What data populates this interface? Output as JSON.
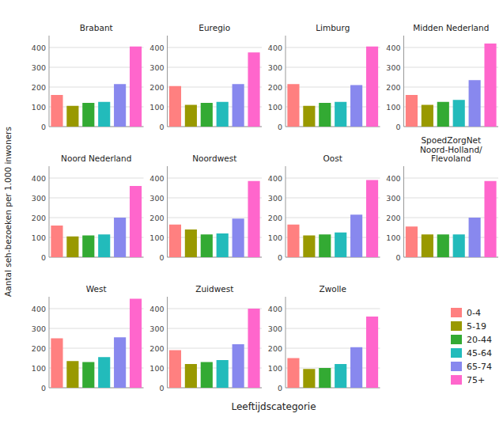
{
  "chart_data": [
    {
      "type": "bar",
      "title": "Brabant",
      "categories": [
        "0-4",
        "5-19",
        "20-44",
        "45-64",
        "65-74",
        "75+"
      ],
      "values": [
        160,
        105,
        120,
        125,
        215,
        405
      ],
      "colors": [
        "#FF8080",
        "#999900",
        "#33AA33",
        "#22BBBB",
        "#8888EE",
        "#FF66CC"
      ],
      "ylim": [
        0,
        460
      ],
      "yticks": [
        0,
        100,
        200,
        300,
        400
      ],
      "grid": true,
      "tick_labels": "y",
      "legend": "lower right",
      "xlabel": "Leeftijdscategorie",
      "ylabel": "Aantal seh-bezoeken per 1.000 inwoners"
    },
    {
      "type": "bar",
      "title": "Euregio",
      "categories": [
        "0-4",
        "5-19",
        "20-44",
        "45-64",
        "65-74",
        "75+"
      ],
      "values": [
        205,
        110,
        120,
        125,
        215,
        375
      ],
      "colors": [
        "#FF8080",
        "#999900",
        "#33AA33",
        "#22BBBB",
        "#8888EE",
        "#FF66CC"
      ],
      "ylim": [
        0,
        460
      ],
      "yticks": [
        0,
        100,
        200,
        300,
        400
      ],
      "grid": true,
      "tick_labels": "y"
    },
    {
      "type": "bar",
      "title": "Limburg",
      "categories": [
        "0-4",
        "5-19",
        "20-44",
        "45-64",
        "65-74",
        "75+"
      ],
      "values": [
        215,
        105,
        120,
        125,
        210,
        405
      ],
      "colors": [
        "#FF8080",
        "#999900",
        "#33AA33",
        "#22BBBB",
        "#8888EE",
        "#FF66CC"
      ],
      "ylim": [
        0,
        460
      ],
      "yticks": [
        0,
        100,
        200,
        300,
        400
      ],
      "grid": true,
      "tick_labels": "y"
    },
    {
      "type": "bar",
      "title": "Midden Nederland",
      "categories": [
        "0-4",
        "5-19",
        "20-44",
        "45-64",
        "65-74",
        "75+"
      ],
      "values": [
        160,
        110,
        125,
        135,
        235,
        420
      ],
      "colors": [
        "#FF8080",
        "#999900",
        "#33AA33",
        "#22BBBB",
        "#8888EE",
        "#FF66CC"
      ],
      "ylim": [
        0,
        460
      ],
      "yticks": [
        0,
        100,
        200,
        300,
        400
      ],
      "grid": true,
      "tick_labels": "y"
    },
    {
      "type": "bar",
      "title": "Noord Nederland",
      "categories": [
        "0-4",
        "5-19",
        "20-44",
        "45-64",
        "65-74",
        "75+"
      ],
      "values": [
        160,
        105,
        110,
        115,
        200,
        360
      ],
      "colors": [
        "#FF8080",
        "#999900",
        "#33AA33",
        "#22BBBB",
        "#8888EE",
        "#FF66CC"
      ],
      "ylim": [
        0,
        460
      ],
      "yticks": [
        0,
        100,
        200,
        300,
        400
      ],
      "grid": true,
      "tick_labels": "y"
    },
    {
      "type": "bar",
      "title": "Noordwest",
      "categories": [
        "0-4",
        "5-19",
        "20-44",
        "45-64",
        "65-74",
        "75+"
      ],
      "values": [
        165,
        140,
        115,
        120,
        195,
        385
      ],
      "colors": [
        "#FF8080",
        "#999900",
        "#33AA33",
        "#22BBBB",
        "#8888EE",
        "#FF66CC"
      ],
      "ylim": [
        0,
        460
      ],
      "yticks": [
        0,
        100,
        200,
        300,
        400
      ],
      "grid": true,
      "tick_labels": "y"
    },
    {
      "type": "bar",
      "title": "Oost",
      "categories": [
        "0-4",
        "5-19",
        "20-44",
        "45-64",
        "65-74",
        "75+"
      ],
      "values": [
        165,
        110,
        115,
        125,
        215,
        390
      ],
      "colors": [
        "#FF8080",
        "#999900",
        "#33AA33",
        "#22BBBB",
        "#8888EE",
        "#FF66CC"
      ],
      "ylim": [
        0,
        460
      ],
      "yticks": [
        0,
        100,
        200,
        300,
        400
      ],
      "grid": true,
      "tick_labels": "y"
    },
    {
      "type": "bar",
      "title": "SpoedZorgNet\nNoord-Holland/\nFlevoland",
      "categories": [
        "0-4",
        "5-19",
        "20-44",
        "45-64",
        "65-74",
        "75+"
      ],
      "values": [
        155,
        115,
        115,
        115,
        200,
        385
      ],
      "colors": [
        "#FF8080",
        "#999900",
        "#33AA33",
        "#22BBBB",
        "#8888EE",
        "#FF66CC"
      ],
      "ylim": [
        0,
        460
      ],
      "yticks": [
        0,
        100,
        200,
        300,
        400
      ],
      "grid": true,
      "tick_labels": "y"
    },
    {
      "type": "bar",
      "title": "West",
      "categories": [
        "0-4",
        "5-19",
        "20-44",
        "45-64",
        "65-74",
        "75+"
      ],
      "values": [
        250,
        135,
        130,
        155,
        255,
        450
      ],
      "colors": [
        "#FF8080",
        "#999900",
        "#33AA33",
        "#22BBBB",
        "#8888EE",
        "#FF66CC"
      ],
      "ylim": [
        0,
        460
      ],
      "yticks": [
        0,
        100,
        200,
        300,
        400
      ],
      "grid": true,
      "tick_labels": "y"
    },
    {
      "type": "bar",
      "title": "Zuidwest",
      "categories": [
        "0-4",
        "5-19",
        "20-44",
        "45-64",
        "65-74",
        "75+"
      ],
      "values": [
        190,
        120,
        130,
        140,
        220,
        400
      ],
      "colors": [
        "#FF8080",
        "#999900",
        "#33AA33",
        "#22BBBB",
        "#8888EE",
        "#FF66CC"
      ],
      "ylim": [
        0,
        460
      ],
      "yticks": [
        0,
        100,
        200,
        300,
        400
      ],
      "grid": true,
      "tick_labels": "y"
    },
    {
      "type": "bar",
      "title": "Zwolle",
      "categories": [
        "0-4",
        "5-19",
        "20-44",
        "45-64",
        "65-74",
        "75+"
      ],
      "values": [
        150,
        95,
        100,
        120,
        205,
        360
      ],
      "colors": [
        "#FF8080",
        "#999900",
        "#33AA33",
        "#22BBBB",
        "#8888EE",
        "#FF66CC"
      ],
      "ylim": [
        0,
        460
      ],
      "yticks": [
        0,
        100,
        200,
        300,
        400
      ],
      "grid": true,
      "tick_labels": "y"
    }
  ]
}
